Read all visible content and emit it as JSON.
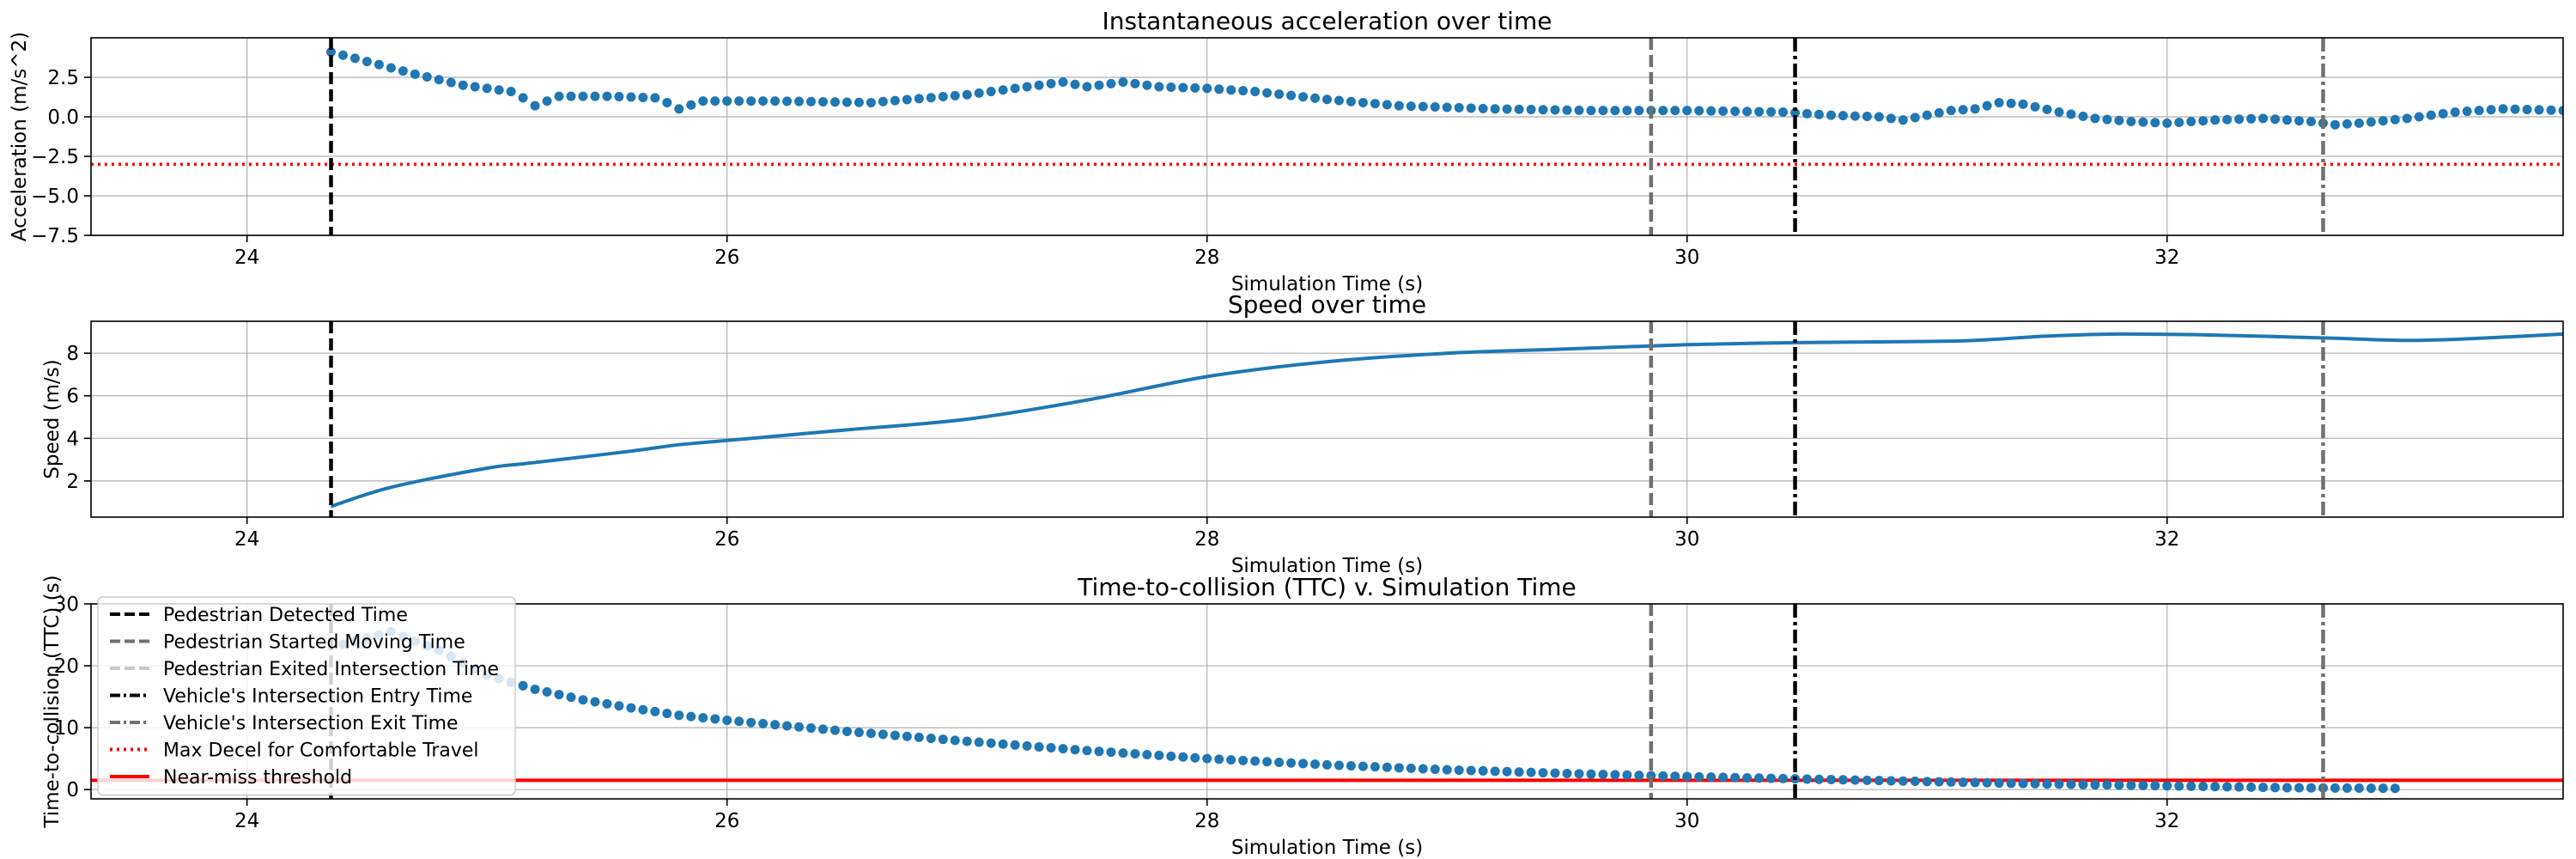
{
  "chart_data": [
    {
      "type": "scatter",
      "title": "Instantaneous acceleration over time",
      "xlabel": "Simulation Time (s)",
      "ylabel": "Acceleration (m/s^2)",
      "xlim": [
        23.35,
        33.65
      ],
      "ylim": [
        -7.5,
        5.0
      ],
      "xticks": [
        24,
        26,
        28,
        30,
        32
      ],
      "yticks": [
        -7.5,
        -5.0,
        -2.5,
        0.0,
        2.5
      ],
      "ytick_labels": [
        "−7.5",
        "−5.0",
        "−2.5",
        "0.0",
        "2.5"
      ],
      "grid": true,
      "series": [
        {
          "color": "#1f77b4",
          "x": [
            24.35,
            24.5,
            24.7,
            24.9,
            25.1,
            25.15,
            25.2,
            25.3,
            25.5,
            25.7,
            25.75,
            25.8,
            25.9,
            26.2,
            26.6,
            27.0,
            27.2,
            27.4,
            27.5,
            27.65,
            27.8,
            28.0,
            28.2,
            28.5,
            28.8,
            29.2,
            29.6,
            30.0,
            30.4,
            30.6,
            30.8,
            30.9,
            31.0,
            31.1,
            31.2,
            31.3,
            31.4,
            31.55,
            31.7,
            31.85,
            32.0,
            32.2,
            32.4,
            32.6,
            32.7,
            32.8,
            33.0,
            33.2,
            33.4,
            33.65
          ],
          "y": [
            4.1,
            3.5,
            2.7,
            2.0,
            1.6,
            1.2,
            0.7,
            1.3,
            1.3,
            1.2,
            0.9,
            0.5,
            1.0,
            1.0,
            0.9,
            1.4,
            1.8,
            2.2,
            1.9,
            2.2,
            1.9,
            1.8,
            1.6,
            1.1,
            0.7,
            0.5,
            0.4,
            0.4,
            0.3,
            0.1,
            0.0,
            -0.2,
            0.1,
            0.4,
            0.5,
            0.9,
            0.8,
            0.3,
            -0.1,
            -0.3,
            -0.4,
            -0.2,
            -0.1,
            -0.3,
            -0.5,
            -0.4,
            -0.1,
            0.3,
            0.5,
            0.4
          ]
        }
      ],
      "vlines": [
        {
          "label": "Pedestrian Detected Time",
          "x": 24.35
        },
        {
          "label": "Pedestrian Started Moving Time",
          "x": 29.85
        },
        {
          "label": "Vehicle's Intersection Entry Time",
          "x": 30.45
        },
        {
          "label": "Vehicle's Intersection Exit Time",
          "x": 32.65
        }
      ],
      "hlines": [
        {
          "label": "Max Decel for Comfortable Travel",
          "y": -3.0,
          "color": "#ff0000"
        }
      ]
    },
    {
      "type": "line",
      "title": "Speed over time",
      "xlabel": "Simulation Time (s)",
      "ylabel": "Speed (m/s)",
      "xlim": [
        23.35,
        33.65
      ],
      "ylim": [
        0.3,
        9.5
      ],
      "xticks": [
        24,
        26,
        28,
        30,
        32
      ],
      "yticks": [
        2,
        4,
        6,
        8
      ],
      "grid": true,
      "series": [
        {
          "color": "#1f77b4",
          "x": [
            24.35,
            24.6,
            25.0,
            25.15,
            25.3,
            25.6,
            25.8,
            26.0,
            26.5,
            27.0,
            27.5,
            28.0,
            28.5,
            29.0,
            29.5,
            30.0,
            30.5,
            31.0,
            31.2,
            31.5,
            31.8,
            32.2,
            32.7,
            33.0,
            33.3,
            33.65
          ],
          "y": [
            0.8,
            1.7,
            2.6,
            2.8,
            3.0,
            3.4,
            3.7,
            3.9,
            4.4,
            4.9,
            5.8,
            6.9,
            7.6,
            8.0,
            8.2,
            8.4,
            8.5,
            8.55,
            8.6,
            8.8,
            8.9,
            8.85,
            8.7,
            8.6,
            8.7,
            8.9
          ]
        }
      ],
      "vlines": [
        {
          "label": "Pedestrian Detected Time",
          "x": 24.35
        },
        {
          "label": "Pedestrian Started Moving Time",
          "x": 29.85
        },
        {
          "label": "Vehicle's Intersection Entry Time",
          "x": 30.45
        },
        {
          "label": "Vehicle's Intersection Exit Time",
          "x": 32.65
        }
      ]
    },
    {
      "type": "scatter",
      "title": "Time-to-collision (TTC) v. Simulation Time",
      "xlabel": "Simulation Time (s)",
      "ylabel": "Time-to-collision (TTC) (s)",
      "xlim": [
        23.35,
        33.65
      ],
      "ylim": [
        -1.5,
        30.0
      ],
      "xticks": [
        24,
        26,
        28,
        30,
        32
      ],
      "yticks": [
        0,
        10,
        20,
        30
      ],
      "grid": true,
      "series": [
        {
          "color": "#1f77b4",
          "x": [
            24.4,
            24.6,
            24.8,
            25.0,
            25.2,
            25.4,
            25.6,
            25.8,
            26.0,
            26.5,
            27.0,
            27.5,
            28.0,
            28.5,
            29.0,
            29.5,
            30.0,
            30.5,
            31.0,
            31.5,
            32.0,
            32.5,
            32.95
          ],
          "y": [
            23.5,
            25.5,
            22.5,
            18.5,
            16.2,
            14.5,
            13.2,
            12.0,
            11.2,
            9.4,
            7.8,
            6.3,
            5.0,
            4.0,
            3.2,
            2.6,
            2.1,
            1.7,
            1.3,
            0.9,
            0.6,
            0.3,
            0.2
          ]
        }
      ],
      "vlines": [
        {
          "label": "Pedestrian Detected Time",
          "x": 24.35
        },
        {
          "label": "Pedestrian Started Moving Time",
          "x": 29.85
        },
        {
          "label": "Vehicle's Intersection Entry Time",
          "x": 30.45
        },
        {
          "label": "Vehicle's Intersection Exit Time",
          "x": 32.65
        }
      ],
      "hlines": [
        {
          "label": "Near-miss threshold",
          "y": 1.5,
          "color": "#ff0000"
        }
      ],
      "legend": {
        "placement": "upper-left",
        "entries": [
          {
            "label": "Pedestrian Detected Time",
            "color": "#000000",
            "style": "dashed"
          },
          {
            "label": "Pedestrian Started Moving Time",
            "color": "#707070",
            "style": "dashed"
          },
          {
            "label": "Pedestrian Exited Intersection Time",
            "color": "#c8c8c8",
            "style": "dashed"
          },
          {
            "label": "Vehicle's Intersection Entry Time",
            "color": "#000000",
            "style": "dashdot"
          },
          {
            "label": "Vehicle's Intersection Exit Time",
            "color": "#707070",
            "style": "dashdot"
          },
          {
            "label": "Max Decel for Comfortable Travel",
            "color": "#ff0000",
            "style": "dotted"
          },
          {
            "label": "Near-miss threshold",
            "color": "#ff0000",
            "style": "solid"
          }
        ]
      }
    }
  ]
}
